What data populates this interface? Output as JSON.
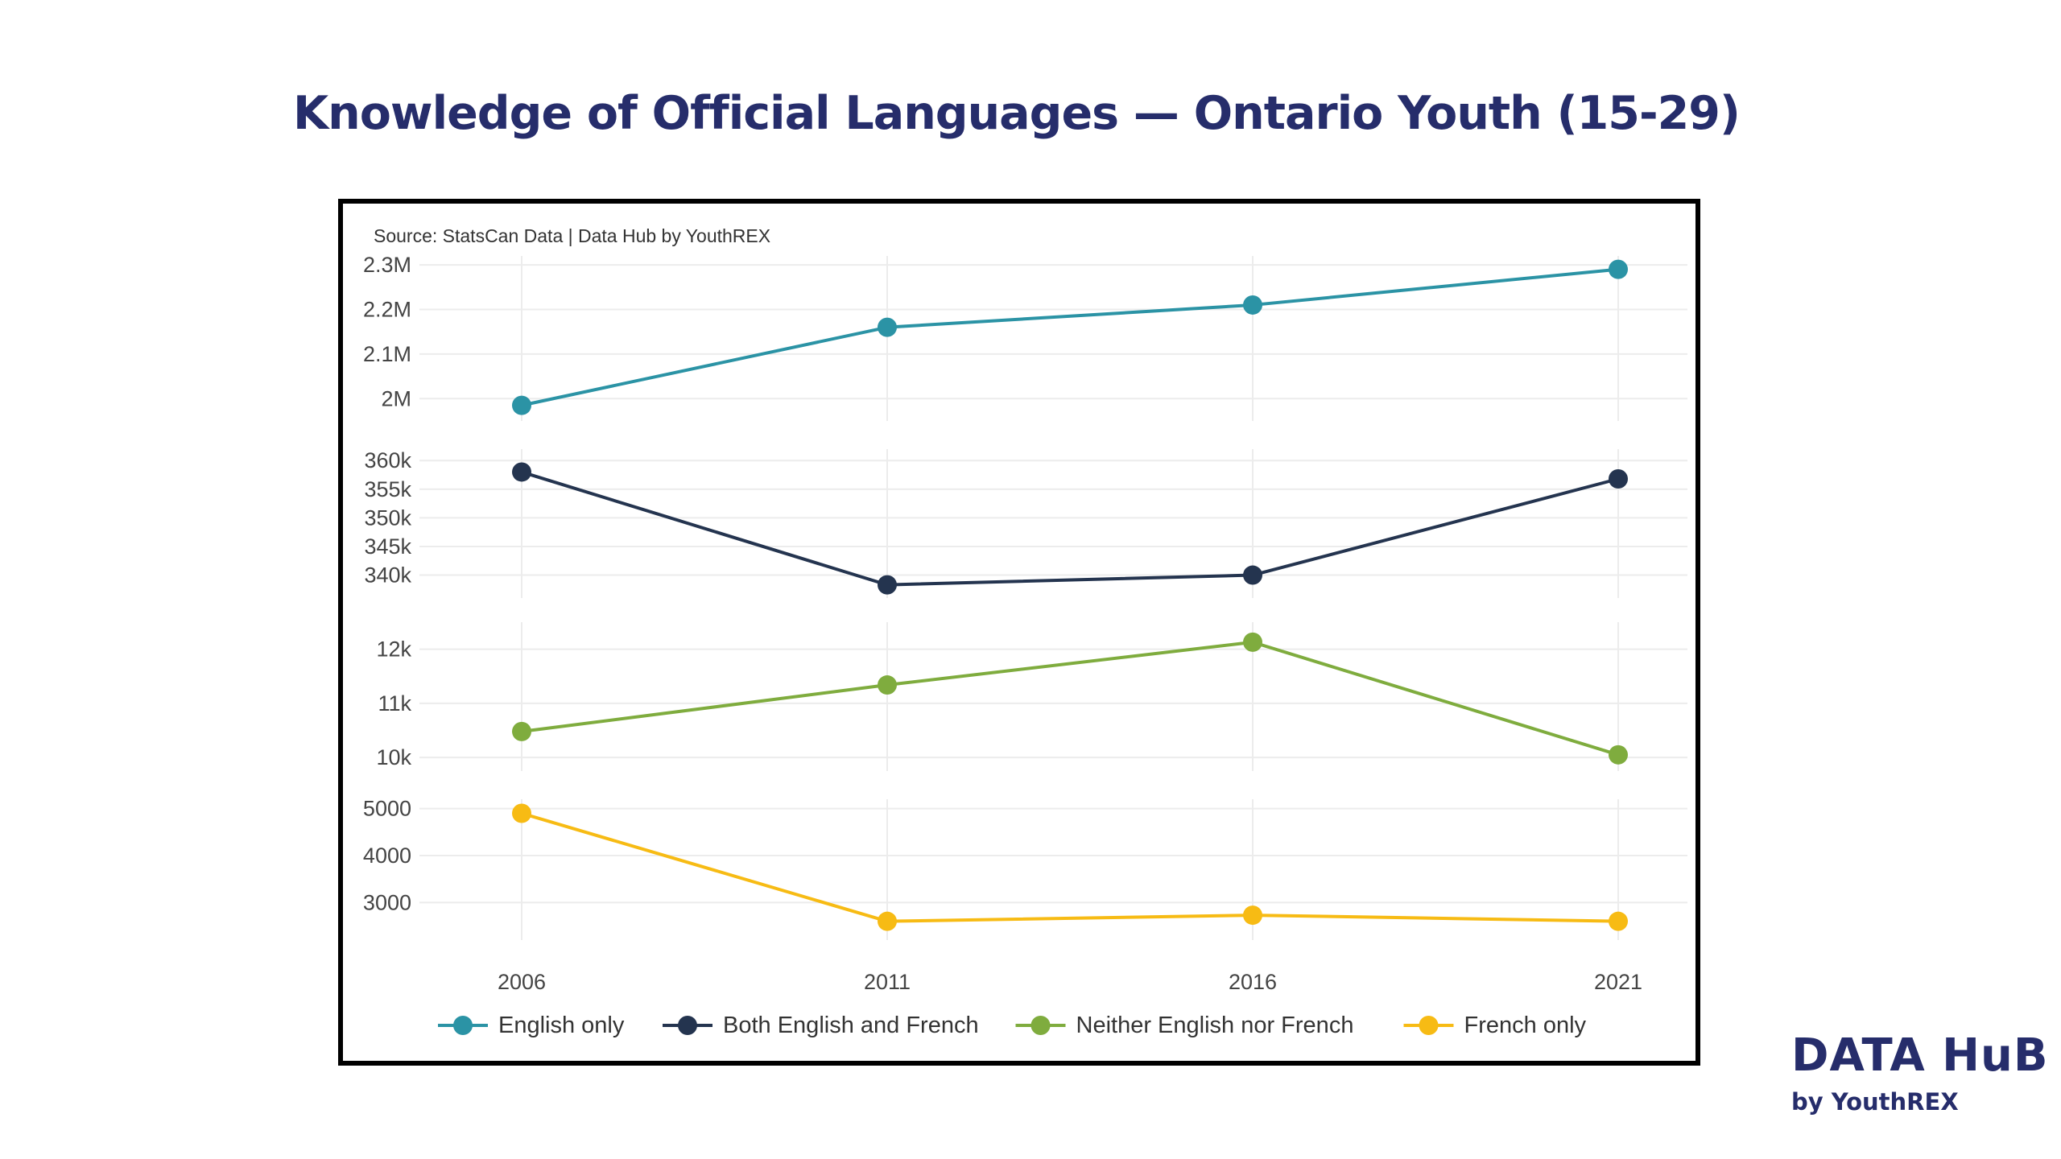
{
  "title": "Knowledge of Official Languages — Ontario Youth (15-29)",
  "brand": {
    "name": "DATA HuB",
    "sub": "by YouthREX"
  },
  "chart_data": {
    "type": "line",
    "source_note": "Source: StatsCan Data | Data Hub by YouthREX",
    "x": [
      "2006",
      "2011",
      "2016",
      "2021"
    ],
    "legend_position": "bottom",
    "grid": true,
    "series": [
      {
        "name": "English only",
        "color": "#2b93a5",
        "values": [
          1985000,
          2160000,
          2210000,
          2290000
        ],
        "ylim": [
          1950000,
          2320000
        ],
        "ticks": [
          2000000,
          2100000,
          2200000,
          2300000
        ],
        "tick_labels": [
          "2M",
          "2.1M",
          "2.2M",
          "2.3M"
        ]
      },
      {
        "name": "Both English and French",
        "color": "#24344f",
        "values": [
          358000,
          338300,
          340000,
          356800
        ],
        "ylim": [
          336000,
          362000
        ],
        "ticks": [
          340000,
          345000,
          350000,
          355000,
          360000
        ],
        "tick_labels": [
          "340k",
          "345k",
          "350k",
          "355k",
          "360k"
        ]
      },
      {
        "name": "Neither English nor French",
        "color": "#7fac3e",
        "values": [
          10480,
          11340,
          12130,
          10050
        ],
        "ylim": [
          9750,
          12500
        ],
        "ticks": [
          10000,
          11000,
          12000
        ],
        "tick_labels": [
          "10k",
          "11k",
          "12k"
        ]
      },
      {
        "name": "French only",
        "color": "#f7bb14",
        "values": [
          4900,
          2600,
          2730,
          2600
        ],
        "ylim": [
          2200,
          5200
        ],
        "ticks": [
          3000,
          4000,
          5000
        ],
        "tick_labels": [
          "3000",
          "4000",
          "5000"
        ]
      }
    ]
  }
}
